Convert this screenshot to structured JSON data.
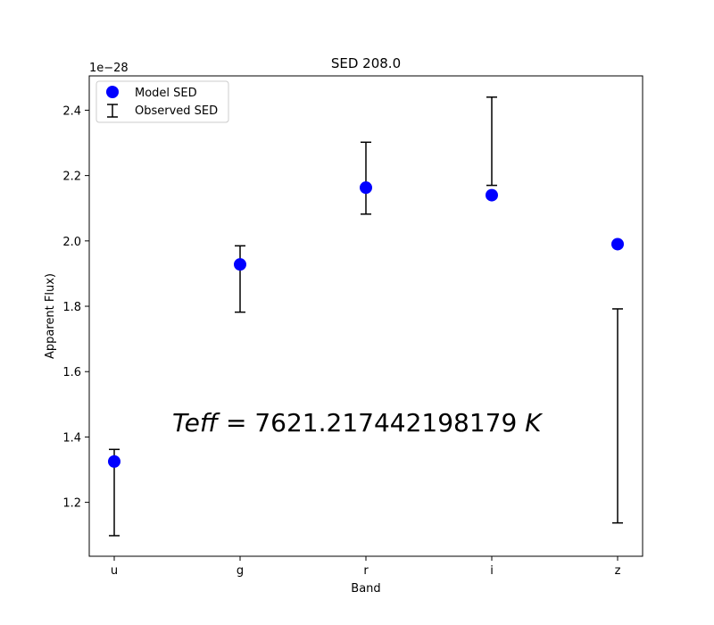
{
  "chart_data": {
    "type": "scatter",
    "title": "SED 208.0",
    "xlabel": "Band",
    "ylabel": "Apparent Flux)",
    "y_offset_text": "1e−28",
    "categories": [
      "u",
      "g",
      "r",
      "i",
      "z"
    ],
    "ylim": [
      1.035,
      2.505
    ],
    "yticks": [
      1.2,
      1.4,
      1.6,
      1.8,
      2.0,
      2.2,
      2.4
    ],
    "ytick_labels": [
      "1.2",
      "1.4",
      "1.6",
      "1.8",
      "2.0",
      "2.2",
      "2.4"
    ],
    "grid": false,
    "legend_position": "top-left",
    "series": [
      {
        "name": "Model SED",
        "kind": "points",
        "color": "#0000ff",
        "values": [
          1.325,
          1.928,
          2.163,
          2.14,
          1.99
        ]
      },
      {
        "name": "Observed SED",
        "kind": "errorbar",
        "color": "#000000",
        "low": [
          1.098,
          1.782,
          2.082,
          2.17,
          1.137
        ],
        "high": [
          1.362,
          1.985,
          2.302,
          2.44,
          1.792
        ]
      }
    ],
    "annotation": {
      "italic_part": "Teff",
      "rest": " = 7621.217442198179 ",
      "unit": "K"
    }
  }
}
